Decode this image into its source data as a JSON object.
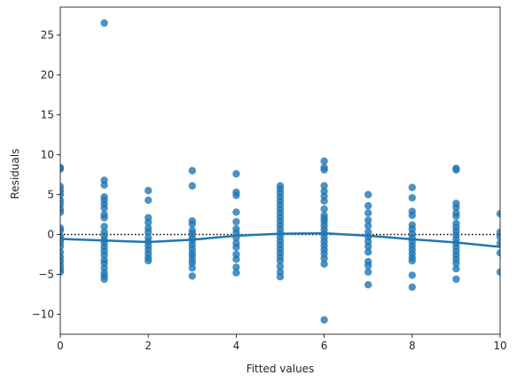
{
  "chart_data": {
    "type": "scatter",
    "xlabel": "Fitted values",
    "ylabel": "Residuals",
    "xlim": [
      0,
      10
    ],
    "ylim": [
      -12.5,
      28.5
    ],
    "xticks": [
      0,
      2,
      4,
      6,
      8,
      10
    ],
    "yticks": [
      -10,
      -5,
      0,
      5,
      10,
      15,
      20,
      25
    ],
    "xtick_labels": [
      "0",
      "2",
      "4",
      "6",
      "8",
      "10"
    ],
    "ytick_labels": [
      "−10",
      "−5",
      "0",
      "5",
      "10",
      "15",
      "20",
      "25"
    ],
    "grid": false,
    "zero_reference_line": {
      "y": 0,
      "style": "dotted",
      "color": "#000000"
    },
    "point_color": "#1f77b4",
    "line_color": "#1f77b4",
    "points": [
      {
        "x": 0,
        "y": 8.4
      },
      {
        "x": 0,
        "y": 8.2
      },
      {
        "x": 0,
        "y": 6.0
      },
      {
        "x": 0,
        "y": 5.5
      },
      {
        "x": 0,
        "y": 5.0
      },
      {
        "x": 0,
        "y": 4.3
      },
      {
        "x": 0,
        "y": 3.8
      },
      {
        "x": 0,
        "y": 3.2
      },
      {
        "x": 0,
        "y": 2.8
      },
      {
        "x": 0,
        "y": 0.8
      },
      {
        "x": 0,
        "y": 0.5
      },
      {
        "x": 0,
        "y": -0.2
      },
      {
        "x": 0,
        "y": -0.6
      },
      {
        "x": 0,
        "y": -1.0
      },
      {
        "x": 0,
        "y": -1.5
      },
      {
        "x": 0,
        "y": -2.2
      },
      {
        "x": 0,
        "y": -2.8
      },
      {
        "x": 0,
        "y": -3.3
      },
      {
        "x": 0,
        "y": -3.8
      },
      {
        "x": 0,
        "y": -4.3
      },
      {
        "x": 0,
        "y": -4.7
      },
      {
        "x": 1,
        "y": 26.5
      },
      {
        "x": 1,
        "y": 6.8
      },
      {
        "x": 1,
        "y": 6.2
      },
      {
        "x": 1,
        "y": 4.7
      },
      {
        "x": 1,
        "y": 4.3
      },
      {
        "x": 1,
        "y": 3.8
      },
      {
        "x": 1,
        "y": 3.3
      },
      {
        "x": 1,
        "y": 2.5
      },
      {
        "x": 1,
        "y": 2.1
      },
      {
        "x": 1,
        "y": 1.0
      },
      {
        "x": 1,
        "y": 0.3
      },
      {
        "x": 1,
        "y": -0.2
      },
      {
        "x": 1,
        "y": -0.7
      },
      {
        "x": 1,
        "y": -1.1
      },
      {
        "x": 1,
        "y": -1.6
      },
      {
        "x": 1,
        "y": -2.1
      },
      {
        "x": 1,
        "y": -2.6
      },
      {
        "x": 1,
        "y": -3.2
      },
      {
        "x": 1,
        "y": -3.6
      },
      {
        "x": 1,
        "y": -4.2
      },
      {
        "x": 1,
        "y": -4.8
      },
      {
        "x": 1,
        "y": -5.2
      },
      {
        "x": 1,
        "y": -5.6
      },
      {
        "x": 2,
        "y": 5.5
      },
      {
        "x": 2,
        "y": 4.3
      },
      {
        "x": 2,
        "y": 2.1
      },
      {
        "x": 2,
        "y": 1.5
      },
      {
        "x": 2,
        "y": 0.8
      },
      {
        "x": 2,
        "y": 0.3
      },
      {
        "x": 2,
        "y": -0.4
      },
      {
        "x": 2,
        "y": -0.9
      },
      {
        "x": 2,
        "y": -1.4
      },
      {
        "x": 2,
        "y": -1.9
      },
      {
        "x": 2,
        "y": -2.4
      },
      {
        "x": 2,
        "y": -2.9
      },
      {
        "x": 2,
        "y": -3.3
      },
      {
        "x": 3,
        "y": 8.0
      },
      {
        "x": 3,
        "y": 6.1
      },
      {
        "x": 3,
        "y": 1.7
      },
      {
        "x": 3,
        "y": 1.3
      },
      {
        "x": 3,
        "y": 0.5
      },
      {
        "x": 3,
        "y": 0.1
      },
      {
        "x": 3,
        "y": -0.4
      },
      {
        "x": 3,
        "y": -0.8
      },
      {
        "x": 3,
        "y": -1.3
      },
      {
        "x": 3,
        "y": -1.8
      },
      {
        "x": 3,
        "y": -2.3
      },
      {
        "x": 3,
        "y": -2.7
      },
      {
        "x": 3,
        "y": -3.2
      },
      {
        "x": 3,
        "y": -3.6
      },
      {
        "x": 3,
        "y": -4.2
      },
      {
        "x": 3,
        "y": -5.2
      },
      {
        "x": 4,
        "y": 7.6
      },
      {
        "x": 4,
        "y": 5.3
      },
      {
        "x": 4,
        "y": 4.9
      },
      {
        "x": 4,
        "y": 2.8
      },
      {
        "x": 4,
        "y": 1.6
      },
      {
        "x": 4,
        "y": 0.7
      },
      {
        "x": 4,
        "y": 0.2
      },
      {
        "x": 4,
        "y": -0.4
      },
      {
        "x": 4,
        "y": -1.1
      },
      {
        "x": 4,
        "y": -1.6
      },
      {
        "x": 4,
        "y": -2.5
      },
      {
        "x": 4,
        "y": -3.1
      },
      {
        "x": 4,
        "y": -4.1
      },
      {
        "x": 4,
        "y": -4.8
      },
      {
        "x": 5,
        "y": 6.1
      },
      {
        "x": 5,
        "y": 5.7
      },
      {
        "x": 5,
        "y": 5.2
      },
      {
        "x": 5,
        "y": 4.7
      },
      {
        "x": 5,
        "y": 4.2
      },
      {
        "x": 5,
        "y": 3.7
      },
      {
        "x": 5,
        "y": 3.2
      },
      {
        "x": 5,
        "y": 2.7
      },
      {
        "x": 5,
        "y": 2.2
      },
      {
        "x": 5,
        "y": 1.7
      },
      {
        "x": 5,
        "y": 1.2
      },
      {
        "x": 5,
        "y": 0.7
      },
      {
        "x": 5,
        "y": 0.2
      },
      {
        "x": 5,
        "y": -0.3
      },
      {
        "x": 5,
        "y": -0.8
      },
      {
        "x": 5,
        "y": -1.3
      },
      {
        "x": 5,
        "y": -1.8
      },
      {
        "x": 5,
        "y": -2.3
      },
      {
        "x": 5,
        "y": -2.8
      },
      {
        "x": 5,
        "y": -3.3
      },
      {
        "x": 5,
        "y": -4.0
      },
      {
        "x": 5,
        "y": -4.7
      },
      {
        "x": 5,
        "y": -5.3
      },
      {
        "x": 6,
        "y": 9.2
      },
      {
        "x": 6,
        "y": 8.4
      },
      {
        "x": 6,
        "y": 8.1
      },
      {
        "x": 6,
        "y": 6.1
      },
      {
        "x": 6,
        "y": 5.4
      },
      {
        "x": 6,
        "y": 4.8
      },
      {
        "x": 6,
        "y": 4.2
      },
      {
        "x": 6,
        "y": 3.2
      },
      {
        "x": 6,
        "y": 2.4
      },
      {
        "x": 6,
        "y": 2.0
      },
      {
        "x": 6,
        "y": 1.6
      },
      {
        "x": 6,
        "y": 1.1
      },
      {
        "x": 6,
        "y": 0.6
      },
      {
        "x": 6,
        "y": 0.1
      },
      {
        "x": 6,
        "y": -0.4
      },
      {
        "x": 6,
        "y": -0.9
      },
      {
        "x": 6,
        "y": -1.4
      },
      {
        "x": 6,
        "y": -1.9
      },
      {
        "x": 6,
        "y": -2.4
      },
      {
        "x": 6,
        "y": -3.0
      },
      {
        "x": 6,
        "y": -3.7
      },
      {
        "x": 6,
        "y": -10.7
      },
      {
        "x": 7,
        "y": 5.0
      },
      {
        "x": 7,
        "y": 3.6
      },
      {
        "x": 7,
        "y": 2.7
      },
      {
        "x": 7,
        "y": 1.8
      },
      {
        "x": 7,
        "y": 1.1
      },
      {
        "x": 7,
        "y": 0.3
      },
      {
        "x": 7,
        "y": -0.3
      },
      {
        "x": 7,
        "y": -0.9
      },
      {
        "x": 7,
        "y": -1.5
      },
      {
        "x": 7,
        "y": -2.2
      },
      {
        "x": 7,
        "y": -3.4
      },
      {
        "x": 7,
        "y": -3.9
      },
      {
        "x": 7,
        "y": -4.7
      },
      {
        "x": 7,
        "y": -6.3
      },
      {
        "x": 8,
        "y": 5.9
      },
      {
        "x": 8,
        "y": 4.6
      },
      {
        "x": 8,
        "y": 2.9
      },
      {
        "x": 8,
        "y": 2.4
      },
      {
        "x": 8,
        "y": 1.2
      },
      {
        "x": 8,
        "y": 0.7
      },
      {
        "x": 8,
        "y": 0.1
      },
      {
        "x": 8,
        "y": -0.4
      },
      {
        "x": 8,
        "y": -0.9
      },
      {
        "x": 8,
        "y": -1.4
      },
      {
        "x": 8,
        "y": -1.9
      },
      {
        "x": 8,
        "y": -2.4
      },
      {
        "x": 8,
        "y": -2.9
      },
      {
        "x": 8,
        "y": -3.3
      },
      {
        "x": 8,
        "y": -5.1
      },
      {
        "x": 8,
        "y": -6.6
      },
      {
        "x": 9,
        "y": 8.3
      },
      {
        "x": 9,
        "y": 8.1
      },
      {
        "x": 9,
        "y": 3.9
      },
      {
        "x": 9,
        "y": 3.4
      },
      {
        "x": 9,
        "y": 2.7
      },
      {
        "x": 9,
        "y": 2.3
      },
      {
        "x": 9,
        "y": 1.4
      },
      {
        "x": 9,
        "y": 0.9
      },
      {
        "x": 9,
        "y": 0.4
      },
      {
        "x": 9,
        "y": -0.1
      },
      {
        "x": 9,
        "y": -0.6
      },
      {
        "x": 9,
        "y": -1.1
      },
      {
        "x": 9,
        "y": -1.6
      },
      {
        "x": 9,
        "y": -2.1
      },
      {
        "x": 9,
        "y": -2.6
      },
      {
        "x": 9,
        "y": -3.1
      },
      {
        "x": 9,
        "y": -3.6
      },
      {
        "x": 9,
        "y": -4.3
      },
      {
        "x": 9,
        "y": -5.6
      },
      {
        "x": 10,
        "y": 2.6
      },
      {
        "x": 10,
        "y": 0.3
      },
      {
        "x": 10,
        "y": -0.3
      },
      {
        "x": 10,
        "y": -1.1
      },
      {
        "x": 10,
        "y": -2.3
      },
      {
        "x": 10,
        "y": -4.7
      }
    ],
    "smooth_line": [
      {
        "x": 0,
        "y": -0.55
      },
      {
        "x": 1,
        "y": -0.75
      },
      {
        "x": 2,
        "y": -0.95
      },
      {
        "x": 3,
        "y": -0.65
      },
      {
        "x": 4,
        "y": -0.15
      },
      {
        "x": 5,
        "y": 0.1
      },
      {
        "x": 6,
        "y": 0.15
      },
      {
        "x": 7,
        "y": -0.15
      },
      {
        "x": 8,
        "y": -0.6
      },
      {
        "x": 9,
        "y": -1.0
      },
      {
        "x": 10,
        "y": -1.55
      }
    ]
  }
}
